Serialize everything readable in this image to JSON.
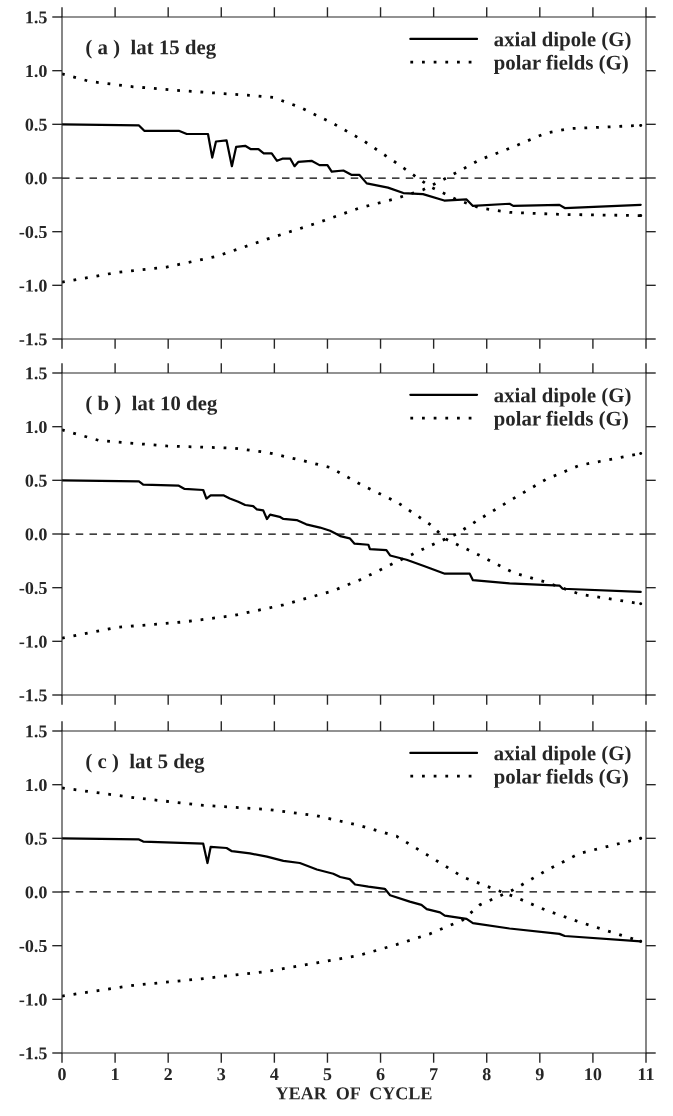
{
  "chart_data": [
    {
      "type": "line",
      "title": "( a )  lat 15 deg",
      "xlim": [
        0,
        11
      ],
      "xticks": [
        0,
        1,
        2,
        3,
        4,
        5,
        6,
        7,
        8,
        9,
        10,
        11
      ],
      "ylim": [
        -1.5,
        1.5
      ],
      "yticks": [
        {
          "value": -1.5,
          "label": "-1.5"
        },
        {
          "value": -1.0,
          "label": "-1.0"
        },
        {
          "value": -0.5,
          "label": "-0.5"
        },
        {
          "value": 0,
          "label": "0.0"
        },
        {
          "value": 0.5,
          "label": "0.5"
        },
        {
          "value": 1.0,
          "label": "1.0"
        },
        {
          "value": 1.5,
          "label": "1.5"
        }
      ],
      "tick_labels": "y",
      "legend": "top right",
      "grid": false,
      "ref_lines": [
        {
          "axis": "y",
          "value": 0,
          "line_style": "dashed",
          "color": "#000000"
        }
      ],
      "series": [
        {
          "name": "axial dipole (G)",
          "color": "#000000",
          "line_style": "solid",
          "x": [
            0,
            1.45,
            1.55,
            2.2,
            2.35,
            2.75,
            2.83,
            2.9,
            3.1,
            3.2,
            3.28,
            3.45,
            3.55,
            3.7,
            3.8,
            3.95,
            4.05,
            4.15,
            4.3,
            4.38,
            4.45,
            4.7,
            4.85,
            5.0,
            5.08,
            5.3,
            5.45,
            5.6,
            5.74,
            6.14,
            6.43,
            6.8,
            7.2,
            7.62,
            7.74,
            8.43,
            8.5,
            9.37,
            9.47,
            10.9
          ],
          "values": [
            0.5,
            0.49,
            0.44,
            0.44,
            0.41,
            0.41,
            0.19,
            0.34,
            0.35,
            0.11,
            0.29,
            0.3,
            0.27,
            0.27,
            0.23,
            0.23,
            0.16,
            0.18,
            0.18,
            0.11,
            0.15,
            0.16,
            0.12,
            0.12,
            0.06,
            0.07,
            0.03,
            0.03,
            -0.05,
            -0.09,
            -0.14,
            -0.15,
            -0.21,
            -0.2,
            -0.26,
            -0.24,
            -0.26,
            -0.25,
            -0.28,
            -0.25
          ]
        },
        {
          "name": "polar fields (G)",
          "color": "#000000",
          "line_style": "dotted",
          "x": [
            0,
            0.52,
            1.34,
            2.35,
            3.54,
            3.98,
            4.48,
            5.1,
            5.67,
            6.3,
            6.93,
            7.43,
            7.87,
            8.43,
            9.44,
            10.9
          ],
          "values": [
            0.97,
            0.9,
            0.85,
            0.81,
            0.77,
            0.75,
            0.66,
            0.51,
            0.35,
            0.14,
            -0.08,
            -0.2,
            -0.28,
            -0.32,
            -0.34,
            -0.35
          ]
        },
        {
          "color": "#000000",
          "line_style": "dotted",
          "x": [
            0,
            1.03,
            1.97,
            2.91,
            3.86,
            4.8,
            5.6,
            6.3,
            6.8,
            7.24,
            7.87,
            8.5,
            9.12,
            9.56,
            10.9
          ],
          "values": [
            -0.97,
            -0.88,
            -0.83,
            -0.73,
            -0.57,
            -0.42,
            -0.28,
            -0.19,
            -0.11,
            0.0,
            0.17,
            0.29,
            0.42,
            0.46,
            0.49
          ]
        }
      ]
    },
    {
      "type": "line",
      "title": "( b )  lat 10 deg",
      "xlim": [
        0,
        11
      ],
      "xticks": [
        0,
        1,
        2,
        3,
        4,
        5,
        6,
        7,
        8,
        9,
        10,
        11
      ],
      "ylim": [
        -1.5,
        1.5
      ],
      "yticks": [
        {
          "value": -1.5,
          "label": "-1.5"
        },
        {
          "value": -1.0,
          "label": "-1.0"
        },
        {
          "value": -0.5,
          "label": "-0.5"
        },
        {
          "value": 0,
          "label": "0.0"
        },
        {
          "value": 0.5,
          "label": "0.5"
        },
        {
          "value": 1.0,
          "label": "1.0"
        },
        {
          "value": 1.5,
          "label": "1.5"
        }
      ],
      "tick_labels": "y",
      "legend": "top right",
      "grid": false,
      "ref_lines": [
        {
          "axis": "y",
          "value": 0,
          "line_style": "dashed",
          "color": "#000000"
        }
      ],
      "series": [
        {
          "name": "axial dipole (G)",
          "color": "#000000",
          "line_style": "solid",
          "x": [
            0,
            1.45,
            1.53,
            2.2,
            2.31,
            2.66,
            2.72,
            2.8,
            3.04,
            3.16,
            3.32,
            3.45,
            3.6,
            3.67,
            3.79,
            3.86,
            3.92,
            4.1,
            4.17,
            4.42,
            4.6,
            4.86,
            5.05,
            5.17,
            5.24,
            5.42,
            5.51,
            5.77,
            5.8,
            6.11,
            6.18,
            6.49,
            6.83,
            7.21,
            7.68,
            7.74,
            8.43,
            9.37,
            9.43,
            10.9
          ],
          "values": [
            0.5,
            0.49,
            0.46,
            0.45,
            0.42,
            0.41,
            0.33,
            0.36,
            0.36,
            0.33,
            0.3,
            0.27,
            0.26,
            0.23,
            0.22,
            0.14,
            0.18,
            0.16,
            0.14,
            0.13,
            0.09,
            0.06,
            0.03,
            0.0,
            -0.02,
            -0.04,
            -0.09,
            -0.1,
            -0.14,
            -0.15,
            -0.2,
            -0.24,
            -0.3,
            -0.37,
            -0.37,
            -0.43,
            -0.46,
            -0.48,
            -0.51,
            -0.54
          ]
        },
        {
          "name": "polar fields (G)",
          "color": "#000000",
          "line_style": "dotted",
          "x": [
            0,
            0.71,
            1.97,
            3.23,
            3.86,
            4.48,
            5.05,
            5.67,
            6.3,
            6.93,
            7.24,
            7.87,
            8.5,
            9.12,
            9.75,
            10.9
          ],
          "values": [
            0.97,
            0.87,
            0.82,
            0.8,
            0.76,
            0.69,
            0.62,
            0.45,
            0.3,
            0.09,
            -0.05,
            -0.2,
            -0.36,
            -0.45,
            -0.56,
            -0.65
          ]
        },
        {
          "color": "#000000",
          "line_style": "dotted",
          "x": [
            0,
            1.03,
            2.28,
            3.23,
            4.17,
            5.1,
            5.6,
            6.3,
            6.93,
            7.43,
            7.87,
            8.5,
            9.12,
            9.75,
            10.9
          ],
          "values": [
            -0.97,
            -0.87,
            -0.82,
            -0.76,
            -0.66,
            -0.53,
            -0.43,
            -0.26,
            -0.11,
            0.0,
            0.14,
            0.33,
            0.51,
            0.64,
            0.75
          ]
        }
      ]
    },
    {
      "type": "line",
      "title": "( c )  lat 5 deg",
      "xlabel": "YEAR  OF  CYCLE",
      "xlim": [
        0,
        11
      ],
      "xticks": [
        0,
        1,
        2,
        3,
        4,
        5,
        6,
        7,
        8,
        9,
        10,
        11
      ],
      "ylim": [
        -1.5,
        1.5
      ],
      "yticks": [
        {
          "value": -1.5,
          "label": "-1.5"
        },
        {
          "value": -1.0,
          "label": "-1.0"
        },
        {
          "value": -0.5,
          "label": "-0.5"
        },
        {
          "value": 0,
          "label": "0.0"
        },
        {
          "value": 0.5,
          "label": "0.5"
        },
        {
          "value": 1.0,
          "label": "1.0"
        },
        {
          "value": 1.5,
          "label": "1.5"
        }
      ],
      "legend": "top right",
      "grid": false,
      "ref_lines": [
        {
          "axis": "y",
          "value": 0,
          "line_style": "dashed",
          "color": "#000000"
        }
      ],
      "series": [
        {
          "name": "axial dipole (G)",
          "color": "#000000",
          "line_style": "solid",
          "x": [
            0,
            1.45,
            1.53,
            2.66,
            2.74,
            2.8,
            3.1,
            3.2,
            3.54,
            3.86,
            4.17,
            4.48,
            4.8,
            5.11,
            5.24,
            5.42,
            5.52,
            5.77,
            6.08,
            6.18,
            6.55,
            6.77,
            6.87,
            7.12,
            7.21,
            7.62,
            7.74,
            8.43,
            9.37,
            9.47,
            10.9
          ],
          "values": [
            0.5,
            0.49,
            0.47,
            0.45,
            0.27,
            0.42,
            0.41,
            0.38,
            0.36,
            0.33,
            0.29,
            0.27,
            0.21,
            0.17,
            0.14,
            0.12,
            0.07,
            0.05,
            0.03,
            -0.03,
            -0.09,
            -0.12,
            -0.16,
            -0.19,
            -0.22,
            -0.25,
            -0.29,
            -0.34,
            -0.39,
            -0.41,
            -0.46
          ]
        },
        {
          "name": "polar fields (G)",
          "color": "#000000",
          "line_style": "dotted",
          "x": [
            0,
            1.34,
            2.6,
            3.86,
            4.8,
            5.6,
            6.3,
            6.93,
            7.55,
            8.18,
            8.5,
            9.12,
            9.75,
            10.9
          ],
          "values": [
            0.97,
            0.88,
            0.81,
            0.77,
            0.71,
            0.62,
            0.52,
            0.33,
            0.14,
            0.02,
            -0.04,
            -0.17,
            -0.28,
            -0.46
          ]
        },
        {
          "color": "#000000",
          "line_style": "dotted",
          "x": [
            0,
            1.34,
            2.6,
            3.86,
            4.8,
            5.6,
            6.3,
            6.93,
            7.55,
            7.87,
            8.5,
            9.12,
            9.75,
            10.9
          ],
          "values": [
            -0.97,
            -0.87,
            -0.81,
            -0.74,
            -0.66,
            -0.59,
            -0.49,
            -0.39,
            -0.26,
            -0.12,
            0.02,
            0.2,
            0.36,
            0.5
          ]
        }
      ]
    }
  ]
}
